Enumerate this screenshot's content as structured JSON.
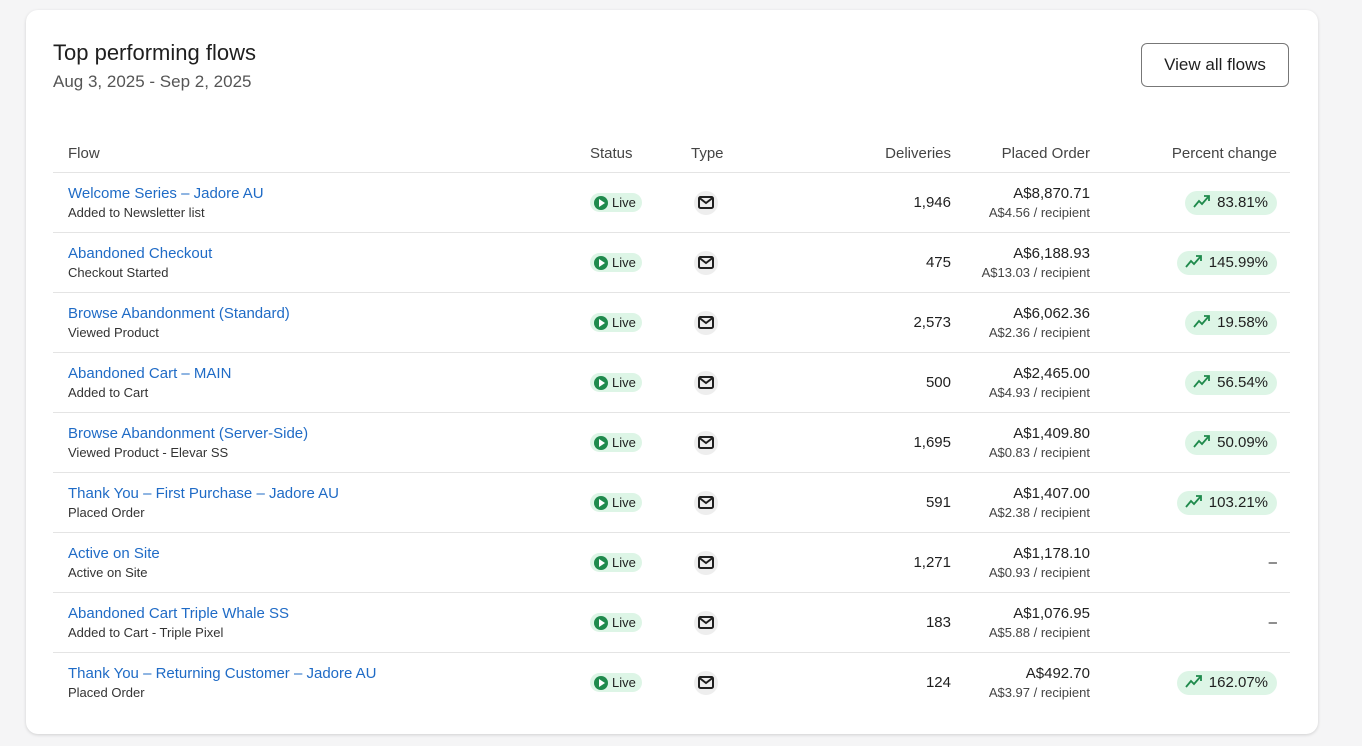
{
  "header": {
    "title": "Top performing flows",
    "date_range": "Aug 3, 2025 - Sep 2, 2025",
    "view_all_label": "View all flows"
  },
  "columns": {
    "flow": "Flow",
    "status": "Status",
    "type": "Type",
    "deliveries": "Deliveries",
    "placed_order": "Placed Order",
    "percent_change": "Percent change"
  },
  "colors": {
    "link": "#1f6bc6",
    "live_bg": "#ddf5e6",
    "live_icon": "#1f8a4c",
    "trend": "#1f8a4c"
  },
  "rows": [
    {
      "name": "Welcome Series – Jadore AU",
      "trigger": "Added to Newsletter list",
      "status": "Live",
      "type": "email-icon",
      "deliveries": "1,946",
      "placed_order": "A$8,870.71",
      "per_recipient": "A$4.56 / recipient",
      "change": "83.81%"
    },
    {
      "name": "Abandoned Checkout",
      "trigger": "Checkout Started",
      "status": "Live",
      "type": "email-icon",
      "deliveries": "475",
      "placed_order": "A$6,188.93",
      "per_recipient": "A$13.03 / recipient",
      "change": "145.99%"
    },
    {
      "name": "Browse Abandonment (Standard)",
      "trigger": "Viewed Product",
      "status": "Live",
      "type": "email-icon",
      "deliveries": "2,573",
      "placed_order": "A$6,062.36",
      "per_recipient": "A$2.36 / recipient",
      "change": "19.58%"
    },
    {
      "name": "Abandoned Cart – MAIN",
      "trigger": "Added to Cart",
      "status": "Live",
      "type": "email-icon",
      "deliveries": "500",
      "placed_order": "A$2,465.00",
      "per_recipient": "A$4.93 / recipient",
      "change": "56.54%"
    },
    {
      "name": "Browse Abandonment (Server-Side)",
      "trigger": "Viewed Product - Elevar SS",
      "status": "Live",
      "type": "email-icon",
      "deliveries": "1,695",
      "placed_order": "A$1,409.80",
      "per_recipient": "A$0.83 / recipient",
      "change": "50.09%"
    },
    {
      "name": "Thank You – First Purchase – Jadore AU",
      "trigger": "Placed Order",
      "status": "Live",
      "type": "email-icon",
      "deliveries": "591",
      "placed_order": "A$1,407.00",
      "per_recipient": "A$2.38 / recipient",
      "change": "103.21%"
    },
    {
      "name": "Active on Site",
      "trigger": "Active on Site",
      "status": "Live",
      "type": "email-icon",
      "deliveries": "1,271",
      "placed_order": "A$1,178.10",
      "per_recipient": "A$0.93 / recipient",
      "change": "–"
    },
    {
      "name": "Abandoned Cart Triple Whale SS",
      "trigger": "Added to Cart - Triple Pixel",
      "status": "Live",
      "type": "email-icon",
      "deliveries": "183",
      "placed_order": "A$1,076.95",
      "per_recipient": "A$5.88 / recipient",
      "change": "–"
    },
    {
      "name": "Thank You – Returning Customer – Jadore AU",
      "trigger": "Placed Order",
      "status": "Live",
      "type": "email-icon",
      "deliveries": "124",
      "placed_order": "A$492.70",
      "per_recipient": "A$3.97 / recipient",
      "change": "162.07%"
    }
  ]
}
